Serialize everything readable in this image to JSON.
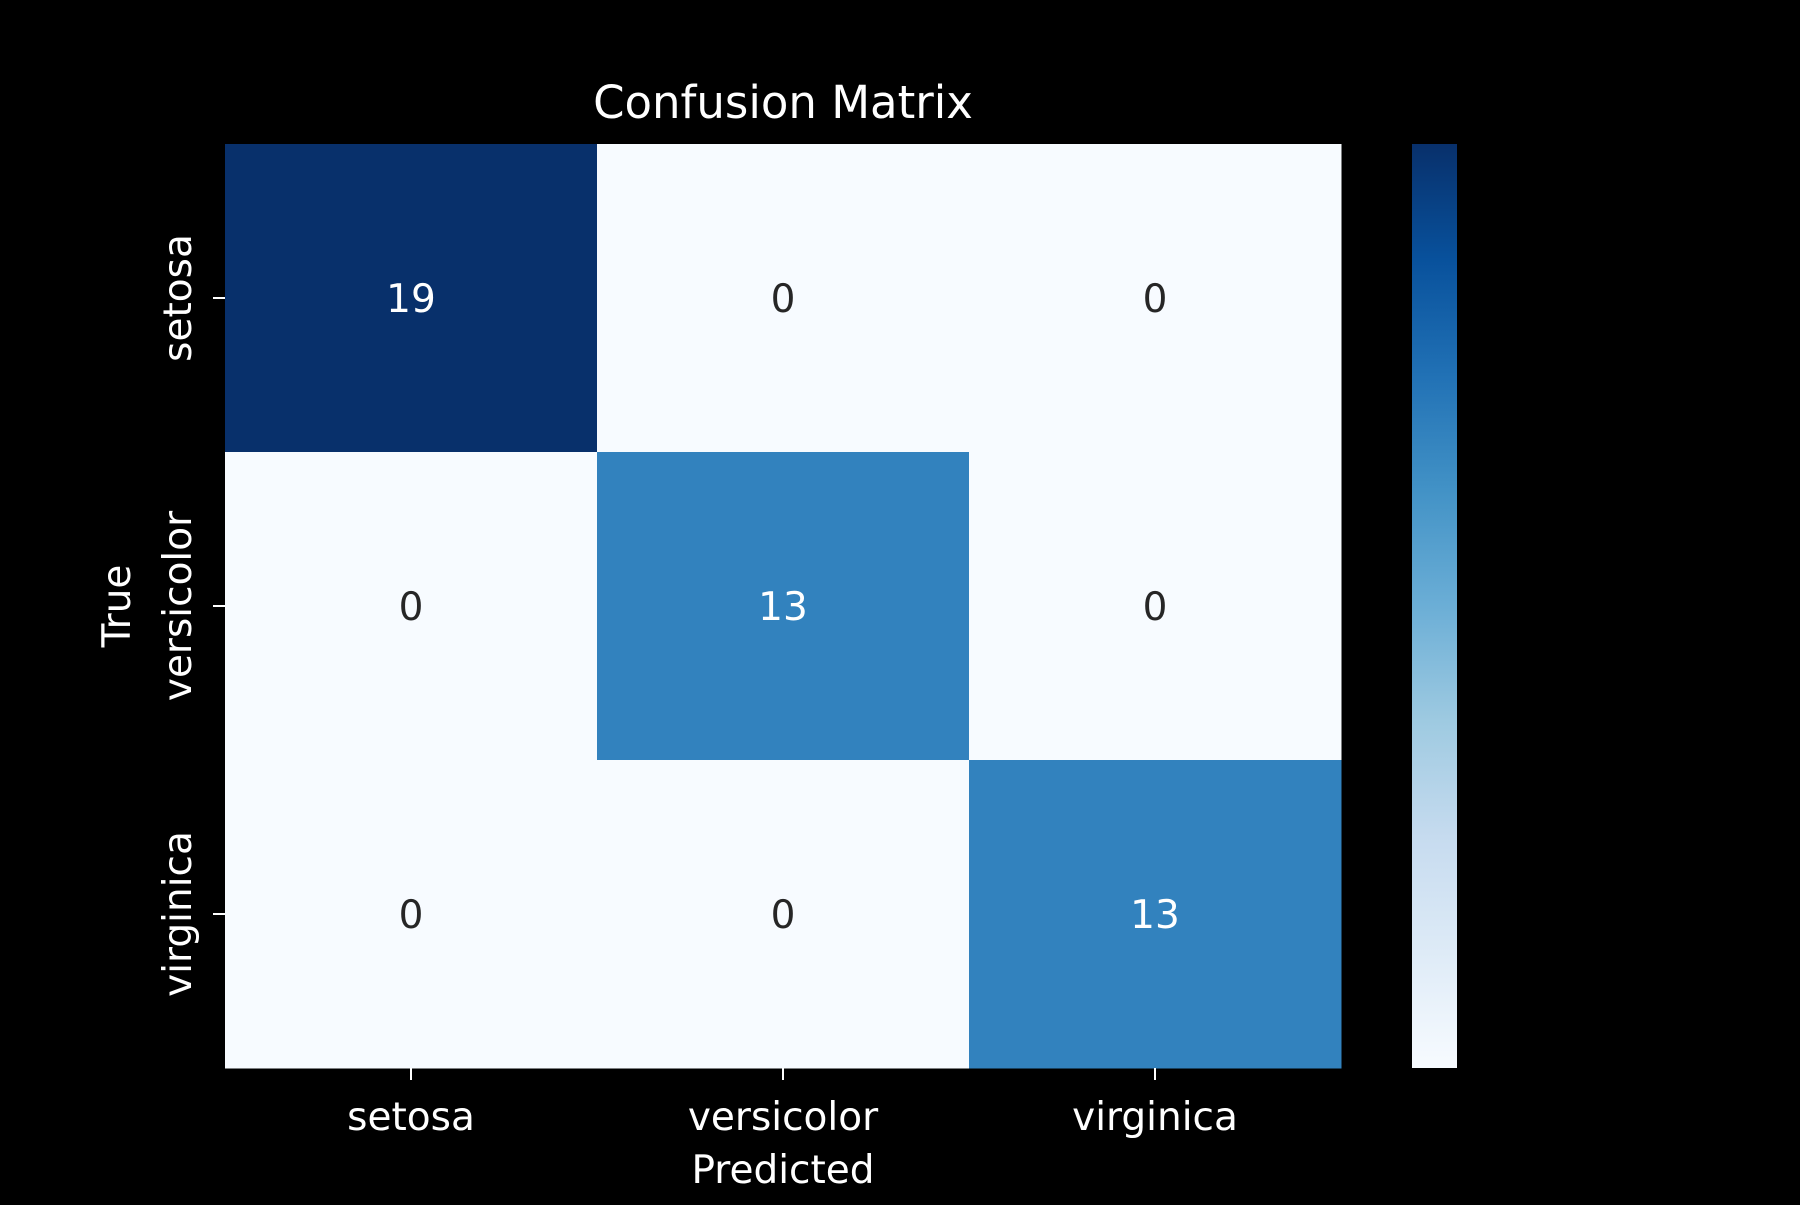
{
  "chart_data": {
    "type": "heatmap",
    "title": "Confusion Matrix",
    "xlabel": "Predicted",
    "ylabel": "True",
    "x_categories": [
      "setosa",
      "versicolor",
      "virginica"
    ],
    "y_categories": [
      "setosa",
      "versicolor",
      "virginica"
    ],
    "values": [
      [
        19,
        0,
        0
      ],
      [
        0,
        13,
        0
      ],
      [
        0,
        0,
        13
      ]
    ],
    "colormap": "Blues",
    "vmin": 0,
    "vmax": 19,
    "colorbar": true,
    "colorbar_ticks_shown": false
  },
  "colors": {
    "background": "#000000",
    "text": "#ffffff",
    "cell_text_dark": "#262626",
    "cell_text_light": "#ffffff",
    "colormap_stops": [
      "#f7fbff",
      "#deebf7",
      "#c6dbef",
      "#9ecae1",
      "#6baed6",
      "#4292c6",
      "#2171b5",
      "#08519c",
      "#08306b"
    ]
  }
}
